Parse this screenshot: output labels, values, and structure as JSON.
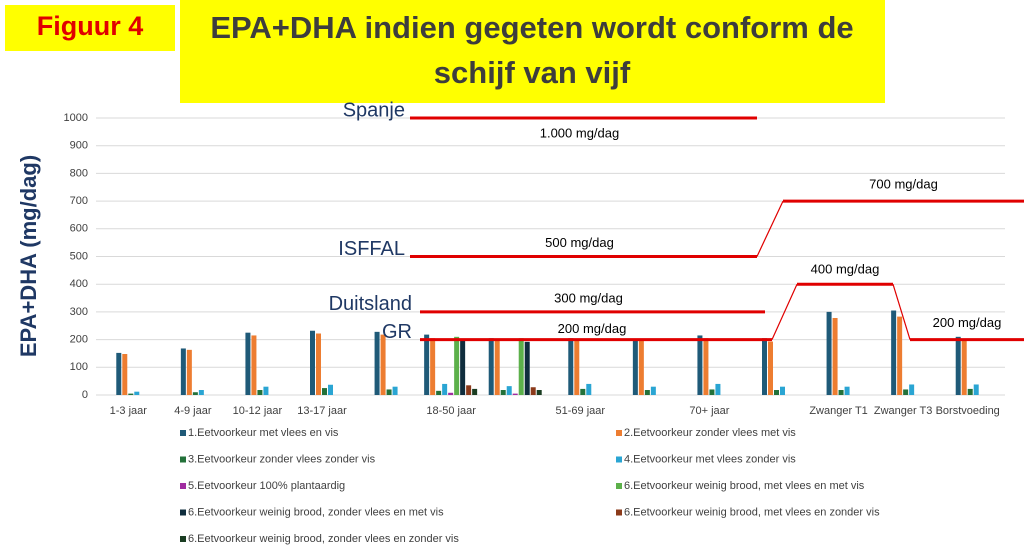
{
  "figure_label": "Figuur 4",
  "chart_data": {
    "type": "bar",
    "title": "EPA+DHA indien gegeten wordt conform de schijf van vijf",
    "y_label": "EPA+DHA (mg/dag)",
    "categories": [
      "1-3 jaar",
      "4-9 jaar",
      "10-12 jaar",
      "13-17 jaar",
      null,
      "18-50 jaar",
      null,
      "51-69 jaar",
      null,
      "70+ jaar",
      null,
      "Zwanger T1",
      "Zwanger T3",
      "Borstvoeding"
    ],
    "ylim": [
      0,
      1000
    ],
    "yticks": [
      0,
      100,
      200,
      300,
      400,
      500,
      600,
      700,
      800,
      900,
      1000
    ],
    "grid": true,
    "series": [
      {
        "name": "1.Eetvoorkeur met vlees en vis",
        "color": "#1f5a78",
        "values": [
          152,
          168,
          225,
          232,
          228,
          218,
          205,
          205,
          200,
          215,
          205,
          300,
          305,
          210
        ]
      },
      {
        "name": "2.Eetvoorkeur zonder vlees met vis",
        "color": "#ed7d31",
        "values": [
          148,
          163,
          215,
          222,
          218,
          205,
          200,
          200,
          195,
          205,
          193,
          278,
          283,
          200
        ]
      },
      {
        "name": "3.Eetvoorkeur zonder vlees zonder vis",
        "color": "#23713a",
        "values": [
          5,
          10,
          18,
          25,
          20,
          15,
          18,
          22,
          18,
          20,
          18,
          18,
          20,
          22
        ]
      },
      {
        "name": "4.Eetvoorkeur met vlees zonder vis",
        "color": "#2aa5d3",
        "values": [
          12,
          18,
          30,
          37,
          30,
          40,
          32,
          40,
          30,
          40,
          30,
          30,
          38,
          38
        ]
      },
      {
        "name": "5.Eetvoorkeur 100% plantaardig",
        "color": "#a02ca0",
        "values": [
          null,
          null,
          null,
          null,
          null,
          8,
          5,
          null,
          null,
          null,
          null,
          null,
          null,
          null
        ]
      },
      {
        "name": "6.Eetvoorkeur weinig brood, met vlees en met vis",
        "color": "#5cb04a",
        "values": [
          null,
          null,
          null,
          null,
          null,
          210,
          205,
          null,
          null,
          null,
          null,
          null,
          null,
          null
        ]
      },
      {
        "name": "6.Eetvoorkeur weinig brood, zonder vlees en met vis",
        "color": "#0f2d3d",
        "values": [
          null,
          null,
          null,
          null,
          null,
          195,
          192,
          null,
          null,
          null,
          null,
          null,
          null,
          null
        ]
      },
      {
        "name": "6.Eetvoorkeur weinig brood, met vlees en zonder vis",
        "color": "#8b3a1a",
        "values": [
          null,
          null,
          null,
          null,
          null,
          35,
          28,
          null,
          null,
          null,
          null,
          null,
          null,
          null
        ]
      },
      {
        "name": "6.Eetvoorkeur weinig brood, zonder vlees en zonder vis",
        "color": "#1a3d22",
        "values": [
          null,
          null,
          null,
          null,
          null,
          22,
          18,
          null,
          null,
          null,
          null,
          null,
          null,
          null
        ]
      }
    ],
    "reference_lines": [
      {
        "name": "Spanje",
        "segments": [
          {
            "value": 1000,
            "label": "1.000 mg/dag"
          }
        ]
      },
      {
        "name": "ISFFAL",
        "segments": [
          {
            "value": 500,
            "label": "500 mg/dag"
          },
          {
            "value": 700,
            "label": "700 mg/dag"
          }
        ]
      },
      {
        "name": "Duitsland",
        "segments": [
          {
            "value": 300,
            "label": "300 mg/dag"
          }
        ]
      },
      {
        "name": "GR",
        "segments": [
          {
            "value": 200,
            "label": "200 mg/dag"
          },
          {
            "value": 400,
            "label": "400 mg/dag"
          },
          {
            "value": 200,
            "label": "200 mg/dag"
          }
        ]
      }
    ]
  }
}
